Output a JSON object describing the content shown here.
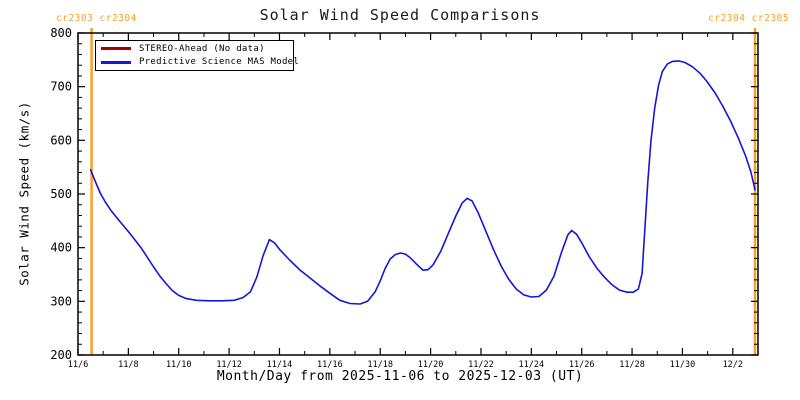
{
  "title": "Solar Wind Speed Comparisons",
  "carrington_labels": {
    "left": "cr2303 cr2304",
    "right": "cr2304 cr2305"
  },
  "legend": [
    {
      "label": "STEREO-Ahead (No data)",
      "color": "#a40000"
    },
    {
      "label": "Predictive Science MAS Model",
      "color": "#1616d6"
    }
  ],
  "colors": {
    "model_line": "#1616d6",
    "stereo_line": "#a40000",
    "boundary_line": "#f8a02a",
    "axis": "#000000",
    "cr_text": "#f8a02a"
  },
  "chart_data": {
    "type": "line",
    "title": "Solar Wind Speed Comparisons",
    "xlabel": "Month/Day from 2025-11-06 to 2025-12-03 (UT)",
    "ylabel": "Solar Wind Speed (km/s)",
    "ylim": [
      200,
      800
    ],
    "y_tick_step": 100,
    "y_minor_step": 20,
    "x_range_days": [
      0,
      27
    ],
    "x_start_date": "2025-11-06",
    "x_end_date": "2025-12-03",
    "x_major_tick_days": [
      0,
      2,
      4,
      6,
      8,
      10,
      12,
      14,
      16,
      18,
      20,
      22,
      24,
      26
    ],
    "x_tick_labels": [
      "11/6",
      "11/8",
      "11/10",
      "11/12",
      "11/14",
      "11/16",
      "11/18",
      "11/20",
      "11/22",
      "11/24",
      "11/26",
      "11/28",
      "11/30",
      "12/2"
    ],
    "x_minor_step_days": 1,
    "grid": false,
    "legend_position": "top-left",
    "carrington_boundaries_day": [
      0.54,
      26.88
    ],
    "series": [
      {
        "name": "STEREO-Ahead (No data)",
        "color": "#a40000",
        "points": []
      },
      {
        "name": "Predictive Science MAS Model",
        "color": "#1616d6",
        "points": [
          [
            0.5,
            545
          ],
          [
            0.68,
            524
          ],
          [
            0.9,
            500
          ],
          [
            1.1,
            484
          ],
          [
            1.3,
            470
          ],
          [
            1.52,
            457
          ],
          [
            1.75,
            444
          ],
          [
            2.0,
            430
          ],
          [
            2.25,
            415
          ],
          [
            2.5,
            400
          ],
          [
            2.75,
            382
          ],
          [
            3.0,
            364
          ],
          [
            3.25,
            347
          ],
          [
            3.5,
            333
          ],
          [
            3.75,
            320
          ],
          [
            4.0,
            311
          ],
          [
            4.3,
            305
          ],
          [
            4.7,
            302
          ],
          [
            5.2,
            301
          ],
          [
            5.7,
            301
          ],
          [
            6.2,
            302
          ],
          [
            6.55,
            307
          ],
          [
            6.85,
            318
          ],
          [
            7.1,
            345
          ],
          [
            7.35,
            385
          ],
          [
            7.6,
            415
          ],
          [
            7.8,
            409
          ],
          [
            8.0,
            397
          ],
          [
            8.4,
            377
          ],
          [
            8.8,
            359
          ],
          [
            9.2,
            344
          ],
          [
            9.6,
            329
          ],
          [
            10.0,
            315
          ],
          [
            10.4,
            302
          ],
          [
            10.8,
            296
          ],
          [
            11.2,
            295
          ],
          [
            11.5,
            300
          ],
          [
            11.8,
            318
          ],
          [
            12.0,
            338
          ],
          [
            12.2,
            362
          ],
          [
            12.4,
            379
          ],
          [
            12.6,
            387
          ],
          [
            12.8,
            390
          ],
          [
            13.0,
            388
          ],
          [
            13.2,
            381
          ],
          [
            13.45,
            369
          ],
          [
            13.7,
            358
          ],
          [
            13.9,
            359
          ],
          [
            14.1,
            368
          ],
          [
            14.4,
            393
          ],
          [
            14.7,
            426
          ],
          [
            15.0,
            459
          ],
          [
            15.25,
            483
          ],
          [
            15.45,
            492
          ],
          [
            15.65,
            487
          ],
          [
            15.9,
            464
          ],
          [
            16.2,
            430
          ],
          [
            16.5,
            396
          ],
          [
            16.8,
            366
          ],
          [
            17.1,
            341
          ],
          [
            17.4,
            323
          ],
          [
            17.7,
            312
          ],
          [
            18.0,
            308
          ],
          [
            18.3,
            309
          ],
          [
            18.6,
            321
          ],
          [
            18.9,
            347
          ],
          [
            19.2,
            392
          ],
          [
            19.45,
            424
          ],
          [
            19.6,
            432
          ],
          [
            19.8,
            425
          ],
          [
            20.0,
            409
          ],
          [
            20.3,
            383
          ],
          [
            20.6,
            362
          ],
          [
            20.9,
            345
          ],
          [
            21.2,
            331
          ],
          [
            21.5,
            321
          ],
          [
            21.8,
            317
          ],
          [
            22.05,
            317
          ],
          [
            22.25,
            323
          ],
          [
            22.4,
            352
          ],
          [
            22.5,
            430
          ],
          [
            22.62,
            520
          ],
          [
            22.75,
            600
          ],
          [
            22.9,
            660
          ],
          [
            23.05,
            702
          ],
          [
            23.2,
            728
          ],
          [
            23.4,
            742
          ],
          [
            23.6,
            747
          ],
          [
            23.85,
            748
          ],
          [
            24.1,
            745
          ],
          [
            24.4,
            737
          ],
          [
            24.7,
            725
          ],
          [
            25.0,
            708
          ],
          [
            25.3,
            688
          ],
          [
            25.6,
            664
          ],
          [
            25.9,
            637
          ],
          [
            26.2,
            606
          ],
          [
            26.5,
            572
          ],
          [
            26.72,
            541
          ],
          [
            26.88,
            508
          ]
        ]
      }
    ]
  }
}
